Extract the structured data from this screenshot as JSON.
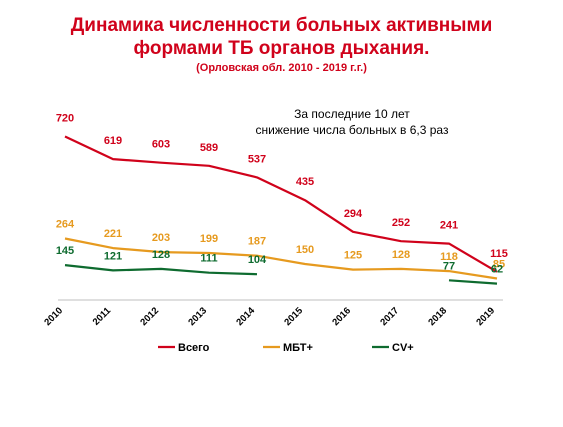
{
  "title": {
    "line1": "Динамика численности больных активными",
    "line2": "формами ТБ органов дыхания.",
    "subtitle": "(Орловская обл. 2010 - 2019 г.г.)"
  },
  "annotation": {
    "line1": "За последние 10 лет",
    "line2": "снижение числа больных  в 6,3 раз"
  },
  "chart_data": {
    "type": "line",
    "categories": [
      "2010",
      "2011",
      "2012",
      "2013",
      "2014",
      "2015",
      "2016",
      "2017",
      "2018",
      "2019"
    ],
    "series": [
      {
        "name": "Всего",
        "color": "#d0021b",
        "values": [
          720,
          619,
          603,
          589,
          537,
          435,
          294,
          252,
          241,
          115
        ],
        "labels": [
          "720",
          "619",
          "603",
          "589",
          "537",
          "435",
          "294",
          "252",
          "241",
          "115"
        ]
      },
      {
        "name": "МБТ+",
        "color": "#e69a1f",
        "values": [
          264,
          221,
          203,
          199,
          187,
          150,
          125,
          128,
          118,
          85
        ],
        "labels": [
          "264",
          "221",
          "203",
          "199",
          "187",
          "150",
          "125",
          "128",
          "118",
          "85"
        ]
      },
      {
        "name": "CV+",
        "color": "#0e6b2f",
        "values": [
          145,
          121,
          128,
          111,
          104,
          null,
          null,
          null,
          77,
          62
        ],
        "labels": [
          "145",
          "121",
          "128",
          "111",
          "104",
          "",
          "",
          "",
          "77",
          "62"
        ]
      }
    ],
    "legend_position": "bottom",
    "grid": false
  }
}
